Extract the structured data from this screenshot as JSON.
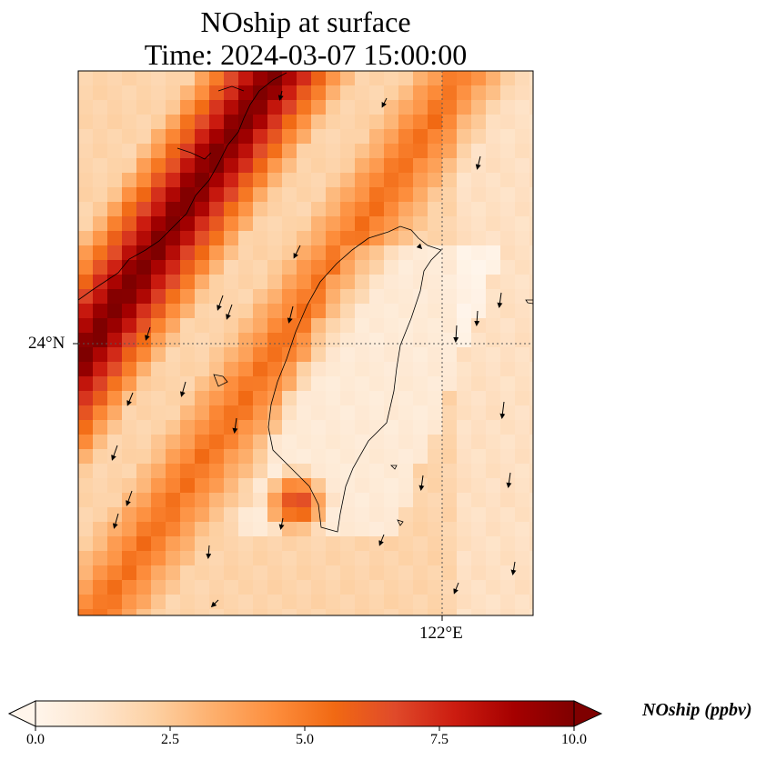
{
  "title_line1": "NOship at surface",
  "title_line2": "Time: 2024-03-07 15:00:00",
  "map": {
    "lat_tick": "24°N",
    "lon_tick": "122°E",
    "gridline_style": "dotted",
    "wind_vectors": "southward (north-to-south) arrows",
    "field_description_colors": {
      "low": "#fff5eb",
      "mid": "#fc9f6b",
      "high": "#cc1c10",
      "max": "#7f0000"
    }
  },
  "colorbar": {
    "title": "NOship (ppbv)",
    "ticks": [
      "0.0",
      "2.5",
      "5.0",
      "7.5",
      "10.0"
    ],
    "min": 0,
    "max": 10,
    "colormap": "OrRd",
    "extend": "both",
    "stops": [
      "#fff5eb",
      "#fee6ce",
      "#fdd0a2",
      "#fdae6b",
      "#fd8d3c",
      "#f16913",
      "#e04a2a",
      "#cc1c10",
      "#a50000",
      "#7f0000"
    ]
  }
}
